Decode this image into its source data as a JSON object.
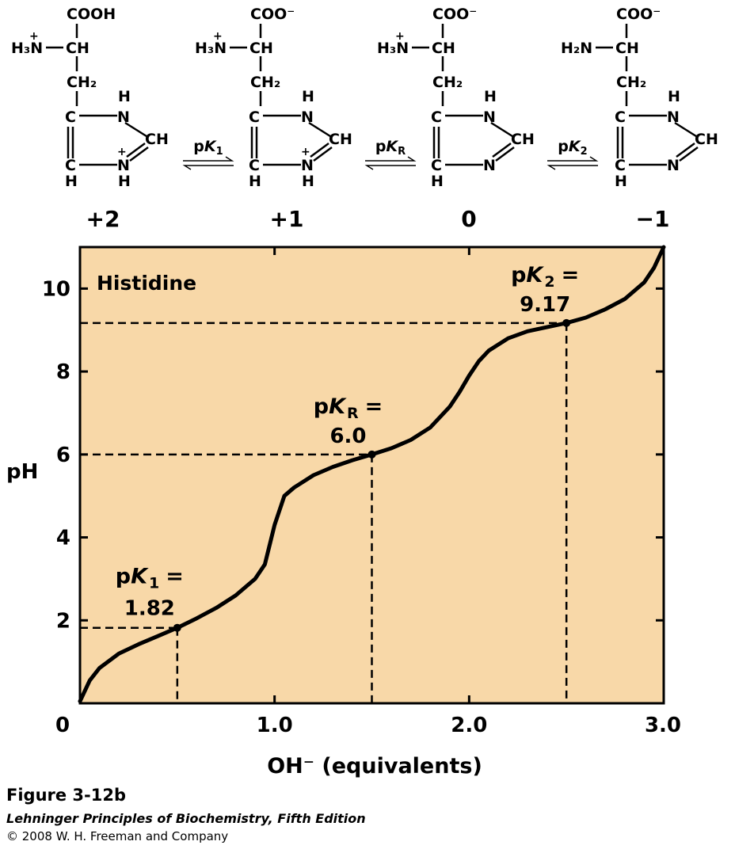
{
  "reaction_scheme": {
    "structures": [
      {
        "carboxyl": "COOH",
        "amino": "H₃N",
        "amino_charge": "+",
        "ring_nitrogen_charge": "+",
        "charge_label": "+2"
      },
      {
        "carboxyl": "COO⁻",
        "amino": "H₃N",
        "amino_charge": "+",
        "ring_nitrogen_charge": "+",
        "charge_label": "+1"
      },
      {
        "carboxyl": "COO⁻",
        "amino": "H₃N",
        "amino_charge": "+",
        "ring_nitrogen_charge": "",
        "charge_label": "0"
      },
      {
        "carboxyl": "COO⁻",
        "amino": "H₂N",
        "amino_charge": "",
        "ring_nitrogen_charge": "",
        "charge_label": "−1"
      }
    ],
    "groups": {
      "ch": "CH",
      "ch2": "CH₂",
      "c": "C",
      "n": "N",
      "h": "H"
    },
    "equilibria": [
      {
        "prefix": "p",
        "k": "K",
        "sub": "1"
      },
      {
        "prefix": "p",
        "k": "K",
        "sub": "R"
      },
      {
        "prefix": "p",
        "k": "K",
        "sub": "2"
      }
    ]
  },
  "chart_data": {
    "type": "line",
    "title": "Histidine",
    "xlabel": "OH⁻  (equivalents)",
    "ylabel": "pH",
    "xlim": [
      0,
      3.0
    ],
    "ylim": [
      0,
      11
    ],
    "xticks": [
      {
        "value": 0,
        "label": "0"
      },
      {
        "value": 1.0,
        "label": "1.0"
      },
      {
        "value": 2.0,
        "label": "2.0"
      },
      {
        "value": 3.0,
        "label": "3.0"
      }
    ],
    "yticks": [
      {
        "value": 2,
        "label": "2"
      },
      {
        "value": 4,
        "label": "4"
      },
      {
        "value": 6,
        "label": "6"
      },
      {
        "value": 8,
        "label": "8"
      },
      {
        "value": 10,
        "label": "10"
      }
    ],
    "series": [
      {
        "x": [
          0,
          0.05,
          0.1,
          0.2,
          0.3,
          0.4,
          0.5,
          0.6,
          0.7,
          0.8,
          0.9,
          0.95,
          1.0,
          1.05,
          1.1,
          1.2,
          1.3,
          1.4,
          1.5,
          1.6,
          1.7,
          1.8,
          1.9,
          1.95,
          2.0,
          2.05,
          2.1,
          2.2,
          2.3,
          2.4,
          2.5,
          2.6,
          2.7,
          2.8,
          2.9,
          2.95,
          3.0
        ],
        "y": [
          0.05,
          0.55,
          0.85,
          1.2,
          1.42,
          1.62,
          1.82,
          2.05,
          2.3,
          2.6,
          3.0,
          3.35,
          4.3,
          5.0,
          5.2,
          5.5,
          5.7,
          5.86,
          6.0,
          6.15,
          6.35,
          6.65,
          7.15,
          7.5,
          7.9,
          8.25,
          8.5,
          8.8,
          8.97,
          9.07,
          9.17,
          9.3,
          9.5,
          9.75,
          10.15,
          10.5,
          11.0
        ]
      }
    ],
    "pk_points": [
      {
        "x": 0.5,
        "y": 1.82,
        "label_line1": "pK",
        "sub": "1",
        "label_line2": "1.82"
      },
      {
        "x": 1.5,
        "y": 6.0,
        "label_line1": "pK",
        "sub": "R",
        "label_line2": "6.0"
      },
      {
        "x": 2.5,
        "y": 9.17,
        "label_line1": "pK",
        "sub": "2",
        "label_line2": "9.17"
      }
    ],
    "grid": false,
    "colors": {
      "background": "#f8d8a8",
      "line": "#000000"
    }
  },
  "caption": {
    "figure": "Figure 3-12b",
    "book": "Lehninger Principles of Biochemistry, Fifth Edition",
    "copyright": "© 2008 W. H. Freeman and Company"
  }
}
